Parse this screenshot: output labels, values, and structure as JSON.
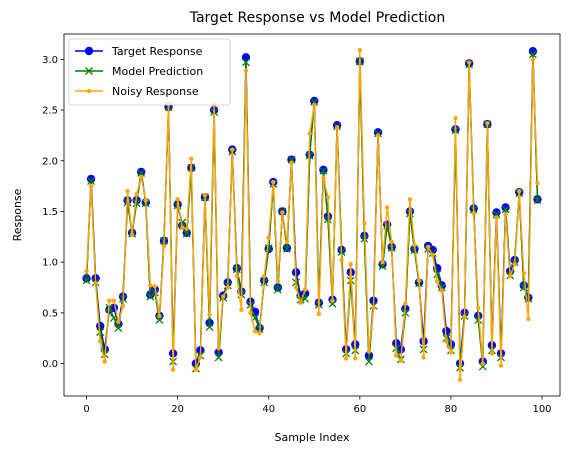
{
  "chart_data": {
    "type": "line",
    "title": "Target Response vs Model Prediction",
    "xlabel": "Sample Index",
    "ylabel": "Response",
    "xlim": [
      -4.95,
      103.95
    ],
    "ylim": [
      -0.32,
      3.25
    ],
    "xticks": [
      0,
      20,
      40,
      60,
      80,
      100
    ],
    "yticks": [
      0.0,
      0.5,
      1.0,
      1.5,
      2.0,
      2.5,
      3.0
    ],
    "grid": false,
    "legend_position": "upper-left",
    "x": [
      0,
      1,
      2,
      3,
      4,
      5,
      6,
      7,
      8,
      9,
      10,
      11,
      12,
      13,
      14,
      15,
      16,
      17,
      18,
      19,
      20,
      21,
      22,
      23,
      24,
      25,
      26,
      27,
      28,
      29,
      30,
      31,
      32,
      33,
      34,
      35,
      36,
      37,
      38,
      39,
      40,
      41,
      42,
      43,
      44,
      45,
      46,
      47,
      48,
      49,
      50,
      51,
      52,
      53,
      54,
      55,
      56,
      57,
      58,
      59,
      60,
      61,
      62,
      63,
      64,
      65,
      66,
      67,
      68,
      69,
      70,
      71,
      72,
      73,
      74,
      75,
      76,
      77,
      78,
      79,
      80,
      81,
      82,
      83,
      84,
      85,
      86,
      87,
      88,
      89,
      90,
      91,
      92,
      93,
      94,
      95,
      96,
      97,
      98,
      99
    ],
    "series": [
      {
        "name": "Target Response",
        "color": "#0000ff",
        "marker": "circle",
        "values": [
          0.84,
          1.82,
          0.84,
          0.37,
          0.14,
          0.53,
          0.55,
          0.39,
          0.66,
          1.61,
          1.29,
          1.61,
          1.89,
          1.59,
          0.68,
          0.73,
          0.47,
          1.21,
          2.53,
          0.1,
          1.57,
          1.36,
          1.29,
          1.93,
          0.0,
          0.13,
          1.64,
          0.4,
          2.5,
          0.11,
          0.67,
          0.8,
          2.11,
          0.94,
          0.71,
          3.02,
          0.61,
          0.51,
          0.35,
          0.82,
          1.13,
          1.79,
          0.75,
          1.5,
          1.14,
          2.01,
          0.9,
          0.67,
          0.69,
          2.06,
          2.59,
          0.6,
          1.91,
          1.45,
          0.63,
          2.35,
          1.12,
          0.14,
          0.9,
          0.19,
          2.98,
          1.26,
          0.08,
          0.62,
          2.28,
          0.98,
          1.37,
          1.15,
          0.2,
          0.14,
          0.54,
          1.5,
          1.13,
          0.8,
          0.22,
          1.16,
          1.12,
          0.94,
          0.77,
          0.32,
          0.19,
          2.31,
          0.0,
          0.5,
          2.96,
          1.53,
          0.47,
          0.02,
          2.36,
          0.18,
          1.49,
          0.1,
          1.54,
          0.91,
          1.02,
          1.69,
          0.77,
          0.65,
          3.08,
          1.62
        ]
      },
      {
        "name": "Model Prediction",
        "color": "#008000",
        "marker": "x",
        "values": [
          0.82,
          1.8,
          0.8,
          0.31,
          0.09,
          0.55,
          0.45,
          0.35,
          0.64,
          1.59,
          1.28,
          1.58,
          1.88,
          1.58,
          0.66,
          0.7,
          0.43,
          1.21,
          2.53,
          0.02,
          1.56,
          1.39,
          1.28,
          1.93,
          -0.05,
          0.08,
          1.64,
          0.36,
          2.48,
          0.06,
          0.65,
          0.77,
          2.09,
          0.93,
          0.68,
          2.97,
          0.58,
          0.45,
          0.34,
          0.8,
          1.14,
          1.77,
          0.73,
          1.5,
          1.13,
          2.01,
          0.8,
          0.63,
          0.64,
          2.05,
          2.58,
          0.58,
          1.9,
          1.42,
          0.59,
          2.34,
          1.1,
          0.1,
          0.82,
          0.13,
          2.98,
          1.23,
          0.02,
          0.57,
          2.27,
          0.96,
          1.36,
          1.14,
          0.15,
          0.04,
          0.5,
          1.48,
          1.12,
          0.79,
          0.14,
          1.13,
          1.09,
          0.88,
          0.75,
          0.25,
          0.13,
          2.3,
          -0.04,
          0.47,
          2.95,
          1.52,
          0.43,
          -0.03,
          2.36,
          0.13,
          1.47,
          0.06,
          1.52,
          0.87,
          1.0,
          1.68,
          0.75,
          0.64,
          3.05,
          1.61
        ]
      },
      {
        "name": "Noisy Response",
        "color": "#ffa500",
        "marker": "dot",
        "values": [
          0.91,
          1.75,
          0.79,
          0.22,
          0.02,
          0.62,
          0.62,
          0.41,
          0.57,
          1.7,
          1.27,
          1.67,
          1.84,
          1.61,
          0.77,
          0.76,
          0.47,
          1.16,
          2.57,
          -0.06,
          1.62,
          1.34,
          1.33,
          2.02,
          -0.06,
          0.06,
          1.66,
          0.48,
          2.55,
          0.15,
          0.66,
          0.75,
          2.11,
          0.86,
          0.53,
          2.89,
          0.5,
          0.32,
          0.3,
          0.86,
          1.24,
          1.79,
          0.81,
          1.49,
          1.2,
          1.98,
          0.75,
          0.6,
          0.73,
          2.27,
          2.55,
          0.49,
          1.83,
          1.64,
          0.62,
          2.33,
          1.02,
          0.05,
          0.98,
          0.05,
          3.09,
          1.38,
          0.12,
          0.55,
          2.25,
          1.0,
          1.54,
          1.2,
          0.08,
          0.03,
          0.59,
          1.62,
          1.17,
          0.82,
          0.06,
          1.15,
          1.07,
          0.81,
          0.72,
          0.22,
          0.11,
          2.42,
          -0.16,
          0.46,
          2.97,
          1.48,
          0.55,
          0.0,
          2.37,
          0.1,
          1.44,
          -0.02,
          1.47,
          0.86,
          0.98,
          1.7,
          0.89,
          0.44,
          3.0,
          1.78
        ]
      }
    ]
  }
}
